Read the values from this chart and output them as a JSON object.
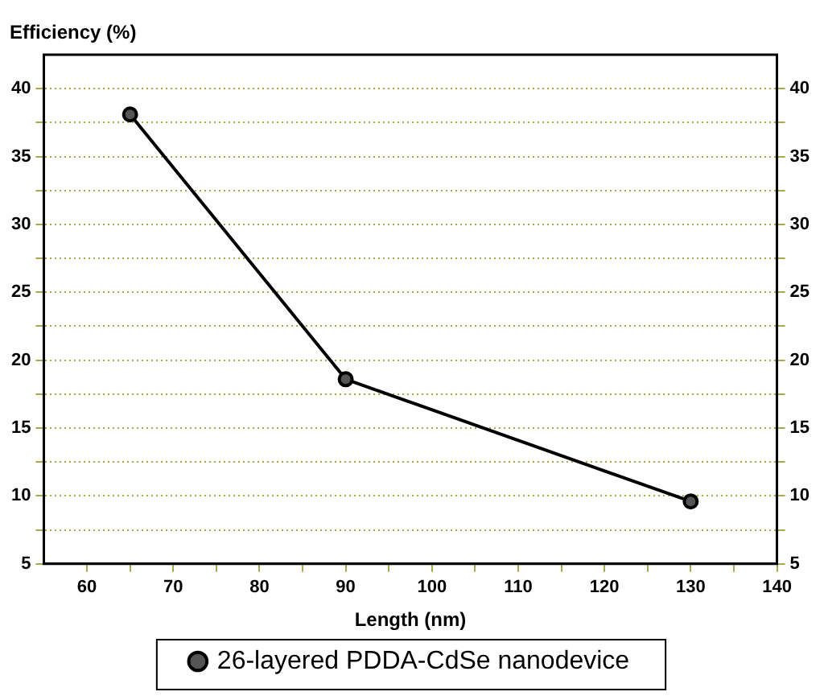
{
  "chart_data": {
    "type": "line",
    "xlabel": "Length (nm)",
    "ylabel": "Efficiency (%)",
    "x": [
      65,
      90,
      130
    ],
    "series": [
      {
        "name": "26-layered PDDA-CdSe nanodevice",
        "color": "#000000",
        "values": [
          38.1,
          18.6,
          9.6
        ]
      }
    ],
    "xlim": [
      55,
      140
    ],
    "xticks": [
      60,
      {
        "value": 65,
        "label": null
      },
      70,
      {
        "value": 75,
        "label": null
      },
      80,
      {
        "value": 85,
        "label": null
      },
      90,
      {
        "value": 95,
        "label": null
      },
      100,
      {
        "value": 105,
        "label": null
      },
      110,
      {
        "value": 115,
        "label": null
      },
      120,
      {
        "value": 125,
        "label": null
      },
      130,
      {
        "value": 135,
        "label": null
      },
      140
    ],
    "ylim": [
      5,
      42.5
    ],
    "yticks": [
      5,
      {
        "value": 7.5,
        "label": null
      },
      10,
      {
        "value": 12.5,
        "label": null
      },
      15,
      {
        "value": 17.5,
        "label": null
      },
      20,
      {
        "value": 22.5,
        "label": null
      },
      25,
      {
        "value": 27.5,
        "label": null
      },
      30,
      {
        "value": 32.5,
        "label": null
      },
      35,
      {
        "value": 37.5,
        "label": null
      },
      40
    ],
    "y2lim": [
      5,
      42.5
    ],
    "y2ticks": [
      5,
      {
        "value": 7.5,
        "label": null
      },
      10,
      {
        "value": 12.5,
        "label": null
      },
      15,
      {
        "value": 17.5,
        "label": null
      },
      20,
      {
        "value": 22.5,
        "label": null
      },
      25,
      {
        "value": 27.5,
        "label": null
      },
      30,
      {
        "value": 32.5,
        "label": null
      },
      35,
      {
        "value": 37.5,
        "label": null
      },
      40
    ],
    "grid": "y",
    "legend": "bottom",
    "marker": "circle",
    "line_style": "solid"
  }
}
